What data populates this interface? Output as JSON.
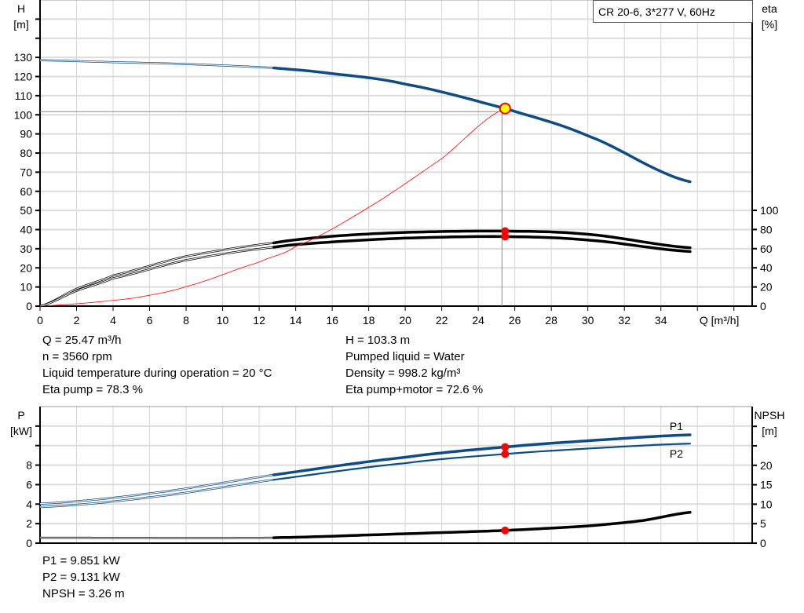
{
  "legend_box": "CR 20-6, 3*277 V, 60Hz",
  "chart_data": [
    {
      "type": "line",
      "xlabel": "Q [m³/h]",
      "ylabel_left": "H\n[m]",
      "ylabel_right": "eta\n[%]",
      "x_ticks": [
        0,
        2,
        4,
        6,
        8,
        10,
        12,
        14,
        16,
        18,
        20,
        22,
        24,
        26,
        28,
        30,
        32,
        34
      ],
      "xlim": [
        0,
        39
      ],
      "ylim_left": [
        0,
        160
      ],
      "y_ticks_left": [
        0,
        10,
        20,
        30,
        40,
        50,
        60,
        70,
        80,
        90,
        100,
        110,
        120,
        130
      ],
      "ylim_right": [
        0,
        100
      ],
      "y_ticks_right": [
        0,
        20,
        40,
        60,
        80,
        100
      ],
      "grid": true,
      "series": [
        {
          "key": "H",
          "axis": "left",
          "color": "#0e4c85",
          "x": [
            0,
            4,
            8,
            12.8,
            16,
            20,
            25.47,
            30,
            35.6
          ],
          "y": [
            128.5,
            127.5,
            126.5,
            124.5,
            121.5,
            116,
            103.3,
            89,
            65
          ],
          "thin_until": 12.8
        },
        {
          "key": "eta_pump",
          "axis": "right",
          "color": "#000000",
          "x": [
            0,
            2,
            4,
            8,
            12.8,
            16,
            20,
            25.47,
            30,
            35.6
          ],
          "y": [
            0,
            18,
            32,
            52,
            66,
            73,
            77,
            78.3,
            75,
            61
          ],
          "thin_until": 12.8
        },
        {
          "key": "eta_pump_motor",
          "axis": "right",
          "color": "#000000",
          "x": [
            0,
            2,
            4,
            8,
            12.8,
            16,
            20,
            25.47,
            30,
            35.6
          ],
          "y": [
            0,
            16,
            29,
            48,
            61.5,
            67,
            71,
            72.6,
            69,
            57
          ],
          "thin_until": 12.8
        },
        {
          "key": "system",
          "axis": "left",
          "color": "#ff0000",
          "x": [
            0,
            5,
            8,
            12,
            14,
            18,
            22,
            25.47
          ],
          "y": [
            0,
            4,
            10.2,
            22.9,
            31.2,
            51.6,
            77.1,
            103.3
          ]
        }
      ],
      "operating_point": {
        "Q": 25.47,
        "H": 103.3,
        "eta_pump": 78.3,
        "eta_pump_motor": 72.6
      }
    },
    {
      "type": "line",
      "ylabel_left": "P\n[kW]",
      "ylabel_right": "NPSH\n[m]",
      "xlim": [
        0,
        39
      ],
      "ylim_left": [
        0,
        14
      ],
      "y_ticks_left": [
        0,
        2,
        4,
        6,
        8
      ],
      "ylim_right": [
        0,
        30
      ],
      "y_ticks_right": [
        0,
        5,
        10,
        15,
        20
      ],
      "grid": true,
      "series": [
        {
          "key": "P1",
          "name": "P1",
          "axis": "left",
          "color": "#0e4c85",
          "x": [
            0,
            6,
            12.8,
            20,
            25.47,
            30,
            35.6
          ],
          "y": [
            4.05,
            5.1,
            7.0,
            8.8,
            9.851,
            10.5,
            11.1
          ],
          "thin_until": 12.8
        },
        {
          "key": "P2",
          "name": "P2",
          "axis": "left",
          "color": "#0e4c85",
          "x": [
            0,
            6,
            12.8,
            20,
            25.47,
            30,
            35.6
          ],
          "y": [
            3.7,
            4.7,
            6.5,
            8.2,
            9.131,
            9.7,
            10.2
          ],
          "thin_until": 12.8
        },
        {
          "key": "NPSH",
          "axis": "right",
          "color": "#000000",
          "x": [
            0,
            12.8,
            20,
            25.47,
            30,
            33,
            35.6
          ],
          "y": [
            1.4,
            1.4,
            2.4,
            3.26,
            4.4,
            5.8,
            7.9
          ],
          "thin_until": 12.8
        }
      ],
      "operating_point": {
        "Q": 25.47,
        "P1": 9.851,
        "P2": 9.131,
        "NPSH": 3.26
      }
    }
  ],
  "info_top_left": [
    "Q = 25.47 m³/h",
    "n = 3560 rpm",
    "Liquid temperature during operation = 20 °C",
    "Eta pump = 78.3 %"
  ],
  "info_top_right": [
    "H = 103.3 m",
    "Pumped liquid = Water",
    "Density = 998.2 kg/m³",
    "Eta pump+motor = 72.6 %"
  ],
  "info_bottom": [
    "P1 = 9.851 kW",
    "P2 = 9.131 kW",
    "NPSH = 3.26 m"
  ]
}
